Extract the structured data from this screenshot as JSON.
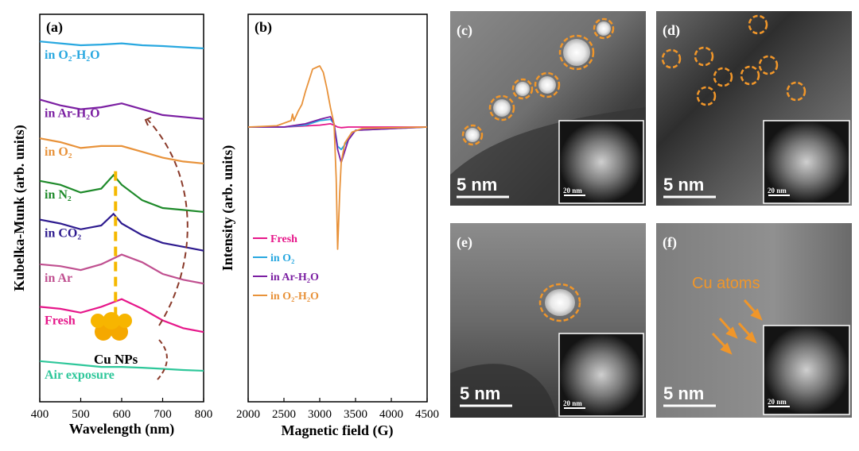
{
  "chart_data": [
    {
      "panel": "(a)",
      "type": "line",
      "xlabel": "Wavelength (nm)",
      "ylabel": "Kubelka-Munk (arb. units)",
      "xlim": [
        400,
        800
      ],
      "xticks": [
        400,
        500,
        600,
        700,
        800
      ],
      "y_ticks_shown": false,
      "annotations": [
        "Cu NPs"
      ],
      "series": [
        {
          "name": "in O₂-H₂O",
          "color": "#29a8e0",
          "x": [
            400,
            450,
            500,
            550,
            600,
            650,
            700,
            750,
            800
          ],
          "y": [
            9.3,
            9.25,
            9.2,
            9.22,
            9.25,
            9.2,
            9.18,
            9.15,
            9.12
          ]
        },
        {
          "name": "in Ar-H₂O",
          "color": "#7b1fa2",
          "x": [
            400,
            450,
            500,
            550,
            600,
            650,
            700,
            750,
            800
          ],
          "y": [
            7.8,
            7.65,
            7.55,
            7.6,
            7.7,
            7.55,
            7.4,
            7.35,
            7.3
          ]
        },
        {
          "name": "in O₂",
          "color": "#e8923a",
          "x": [
            400,
            450,
            500,
            550,
            600,
            650,
            700,
            750,
            800
          ],
          "y": [
            6.8,
            6.7,
            6.55,
            6.6,
            6.6,
            6.45,
            6.3,
            6.2,
            6.15
          ]
        },
        {
          "name": "in N₂",
          "color": "#1e8a2a",
          "x": [
            400,
            450,
            500,
            550,
            580,
            600,
            650,
            700,
            750,
            800
          ],
          "y": [
            5.7,
            5.6,
            5.4,
            5.5,
            5.85,
            5.6,
            5.2,
            5.0,
            4.95,
            4.9
          ]
        },
        {
          "name": "in CO₂",
          "color": "#2e1b8f",
          "x": [
            400,
            450,
            500,
            550,
            580,
            600,
            650,
            700,
            750,
            800
          ],
          "y": [
            4.7,
            4.6,
            4.45,
            4.55,
            4.85,
            4.6,
            4.3,
            4.1,
            4.0,
            3.9
          ]
        },
        {
          "name": "in Ar",
          "color": "#c05090",
          "x": [
            400,
            450,
            500,
            550,
            600,
            650,
            700,
            750,
            800
          ],
          "y": [
            3.55,
            3.5,
            3.4,
            3.55,
            3.8,
            3.6,
            3.3,
            3.15,
            3.05
          ]
        },
        {
          "name": "Fresh",
          "color": "#e6178a",
          "x": [
            400,
            450,
            500,
            550,
            600,
            650,
            700,
            750,
            800
          ],
          "y": [
            2.45,
            2.4,
            2.3,
            2.45,
            2.65,
            2.4,
            2.1,
            1.9,
            1.8
          ]
        },
        {
          "name": "Air exposure",
          "color": "#2ec79a",
          "x": [
            400,
            450,
            500,
            550,
            600,
            650,
            700,
            750,
            800
          ],
          "y": [
            1.05,
            1.0,
            0.95,
            0.9,
            0.9,
            0.88,
            0.85,
            0.82,
            0.8
          ]
        }
      ],
      "markers": {
        "dashed_line_x": 585,
        "dashed_line_color": "#f5b800"
      }
    },
    {
      "panel": "(b)",
      "type": "line",
      "xlabel": "Magnetic field (G)",
      "ylabel": "Intensity (arb. units)",
      "xlim": [
        2000,
        4500
      ],
      "xticks": [
        2000,
        2500,
        3000,
        3500,
        4000,
        4500
      ],
      "y_ticks_shown": false,
      "legend_position": "center",
      "series": [
        {
          "name": "Fresh",
          "color": "#e6178a",
          "x": [
            2000,
            2500,
            3000,
            3150,
            3200,
            3250,
            3300,
            3400,
            4500
          ],
          "y": [
            0,
            0,
            0.03,
            0.05,
            0.03,
            0,
            -0.01,
            0,
            0
          ]
        },
        {
          "name": "in O₂",
          "color": "#29a8e0",
          "x": [
            2000,
            2500,
            2800,
            3000,
            3150,
            3200,
            3250,
            3300,
            3400,
            3500,
            4500
          ],
          "y": [
            0,
            0,
            0.03,
            0.1,
            0.12,
            0.05,
            -0.3,
            -0.35,
            -0.2,
            -0.05,
            0
          ]
        },
        {
          "name": "in Ar-H₂O",
          "color": "#7b1fa2",
          "x": [
            2000,
            2500,
            2800,
            3000,
            3150,
            3200,
            3250,
            3300,
            3400,
            3500,
            4500
          ],
          "y": [
            0,
            0,
            0.05,
            0.12,
            0.16,
            0.05,
            -0.35,
            -0.55,
            -0.2,
            -0.05,
            0
          ]
        },
        {
          "name": "in O₂-H₂O",
          "color": "#e8923a",
          "x": [
            2000,
            2400,
            2600,
            2620,
            2640,
            2700,
            2750,
            2800,
            2900,
            3000,
            3050,
            3100,
            3150,
            3200,
            3230,
            3250,
            3280,
            3300,
            3350,
            3450,
            3600,
            4500
          ],
          "y": [
            0,
            0.02,
            0.1,
            0.2,
            0.1,
            0.25,
            0.35,
            0.55,
            0.9,
            0.95,
            0.85,
            0.6,
            0.3,
            0.05,
            -0.8,
            -1.9,
            -1.0,
            -0.55,
            -0.25,
            -0.08,
            -0.02,
            0
          ]
        }
      ]
    }
  ],
  "panels": {
    "a": "(a)",
    "b": "(b)",
    "c": "(c)",
    "d": "(d)",
    "e": "(e)",
    "f": "(f)"
  },
  "tem": {
    "scale_main": "5 nm",
    "scale_inset": "20 nm",
    "f_annotation": "Cu atoms"
  },
  "colors": {
    "highlight_circle": "#f0962a",
    "arrow": "#f0962a"
  }
}
